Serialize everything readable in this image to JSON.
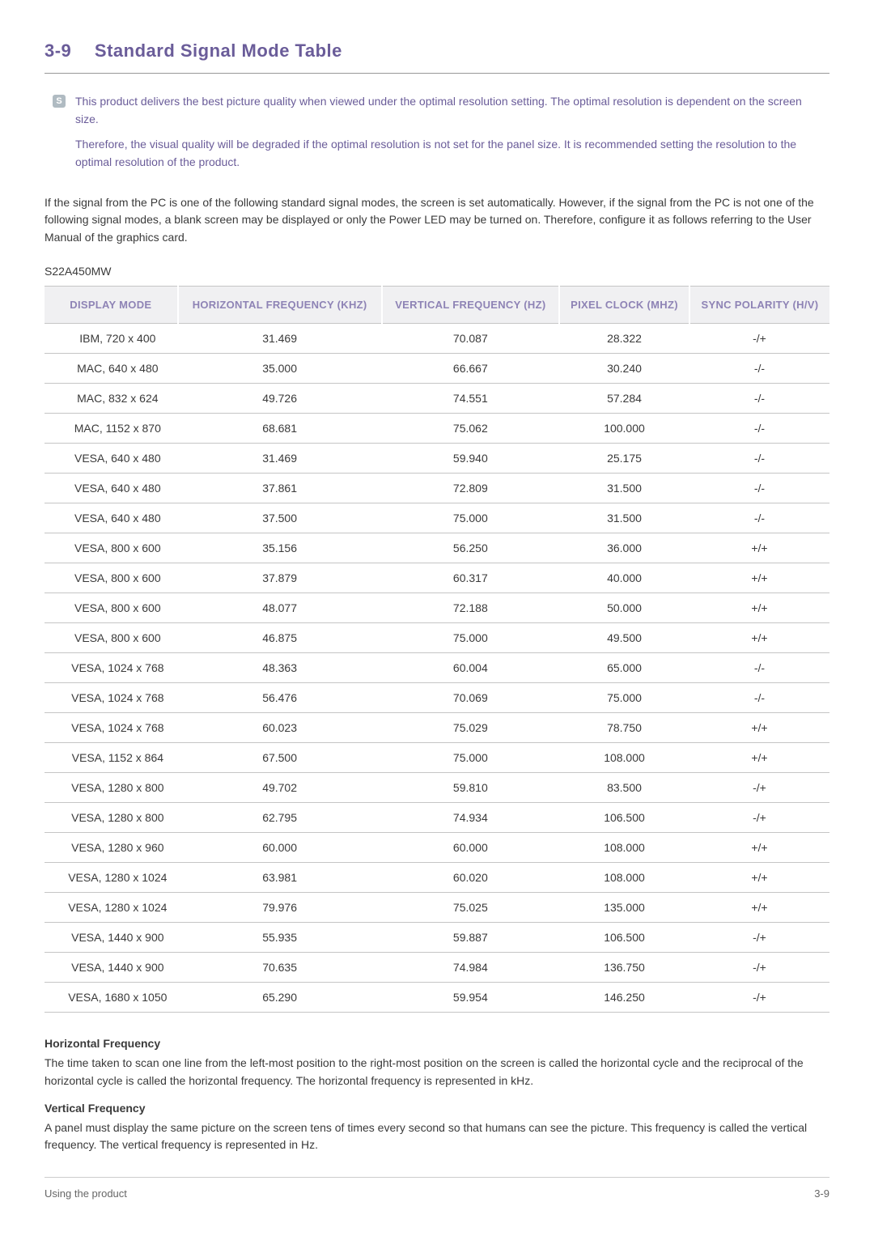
{
  "heading": {
    "number": "3-9",
    "title": "Standard Signal Mode Table",
    "color": "#6a5c99"
  },
  "infobox": {
    "icon_label": "S",
    "para1": "This product delivers the best picture quality when viewed under the optimal resolution setting. The optimal resolution is dependent on the screen size.",
    "para2": "Therefore, the visual quality will be degraded if the optimal resolution is not set for the panel size. It is recommended setting the resolution to the optimal resolution of the product."
  },
  "body_para": "If the signal from the PC is one of the following standard signal modes, the screen is set automatically. However, if the signal from the PC is not one of the following signal modes, a blank screen may be displayed or only the Power LED may be turned on. Therefore, configure it as follows referring to the User Manual of the graphics card.",
  "model": "S22A450MW",
  "table": {
    "type": "table",
    "header_bg": "#f0f0f2",
    "header_color": "#8e83b5",
    "border_color": "#c5c5c5",
    "columns": [
      "DISPLAY MODE",
      "HORIZONTAL FREQUENCY (KHZ)",
      "VERTICAL FREQUENCY  (HZ)",
      "PIXEL CLOCK (MHZ)",
      "SYNC POLARITY (H/V)"
    ],
    "rows": [
      [
        "IBM, 720 x 400",
        "31.469",
        "70.087",
        "28.322",
        "-/+"
      ],
      [
        "MAC, 640 x 480",
        "35.000",
        "66.667",
        "30.240",
        "-/-"
      ],
      [
        "MAC, 832 x 624",
        "49.726",
        "74.551",
        "57.284",
        "-/-"
      ],
      [
        "MAC, 1152 x 870",
        "68.681",
        "75.062",
        "100.000",
        "-/-"
      ],
      [
        "VESA, 640 x 480",
        "31.469",
        "59.940",
        "25.175",
        "-/-"
      ],
      [
        "VESA, 640 x 480",
        "37.861",
        "72.809",
        "31.500",
        "-/-"
      ],
      [
        "VESA, 640 x 480",
        "37.500",
        "75.000",
        "31.500",
        "-/-"
      ],
      [
        "VESA, 800 x 600",
        "35.156",
        "56.250",
        "36.000",
        "+/+"
      ],
      [
        "VESA, 800 x 600",
        "37.879",
        "60.317",
        "40.000",
        "+/+"
      ],
      [
        "VESA, 800 x 600",
        "48.077",
        "72.188",
        "50.000",
        "+/+"
      ],
      [
        "VESA, 800 x 600",
        "46.875",
        "75.000",
        "49.500",
        "+/+"
      ],
      [
        "VESA, 1024 x 768",
        "48.363",
        "60.004",
        "65.000",
        "-/-"
      ],
      [
        "VESA, 1024 x 768",
        "56.476",
        "70.069",
        "75.000",
        "-/-"
      ],
      [
        "VESA, 1024 x 768",
        "60.023",
        "75.029",
        "78.750",
        "+/+"
      ],
      [
        "VESA, 1152 x 864",
        "67.500",
        "75.000",
        "108.000",
        "+/+"
      ],
      [
        "VESA, 1280 x 800",
        "49.702",
        "59.810",
        "83.500",
        "-/+"
      ],
      [
        "VESA, 1280 x 800",
        "62.795",
        "74.934",
        "106.500",
        "-/+"
      ],
      [
        "VESA, 1280 x 960",
        "60.000",
        "60.000",
        "108.000",
        "+/+"
      ],
      [
        "VESA, 1280 x 1024",
        "63.981",
        "60.020",
        "108.000",
        "+/+"
      ],
      [
        "VESA, 1280 x 1024",
        "79.976",
        "75.025",
        "135.000",
        "+/+"
      ],
      [
        "VESA, 1440 x 900",
        "55.935",
        "59.887",
        "106.500",
        "-/+"
      ],
      [
        "VESA, 1440 x 900",
        "70.635",
        "74.984",
        "136.750",
        "-/+"
      ],
      [
        "VESA, 1680 x 1050",
        "65.290",
        "59.954",
        "146.250",
        "-/+"
      ]
    ]
  },
  "definitions": {
    "h_title": "Horizontal Frequency",
    "h_text": "The time taken to scan one line from the left-most position to the right-most position on the screen is called the horizontal cycle and the reciprocal of the horizontal cycle is called the horizontal frequency. The horizontal frequency is represented in kHz.",
    "v_title": "Vertical Frequency",
    "v_text": "A panel must display the same picture on the screen tens of times every second so that humans can see the picture. This frequency is called the vertical frequency. The vertical frequency is represented in Hz."
  },
  "footer": {
    "left": "Using the product",
    "right": "3-9"
  }
}
